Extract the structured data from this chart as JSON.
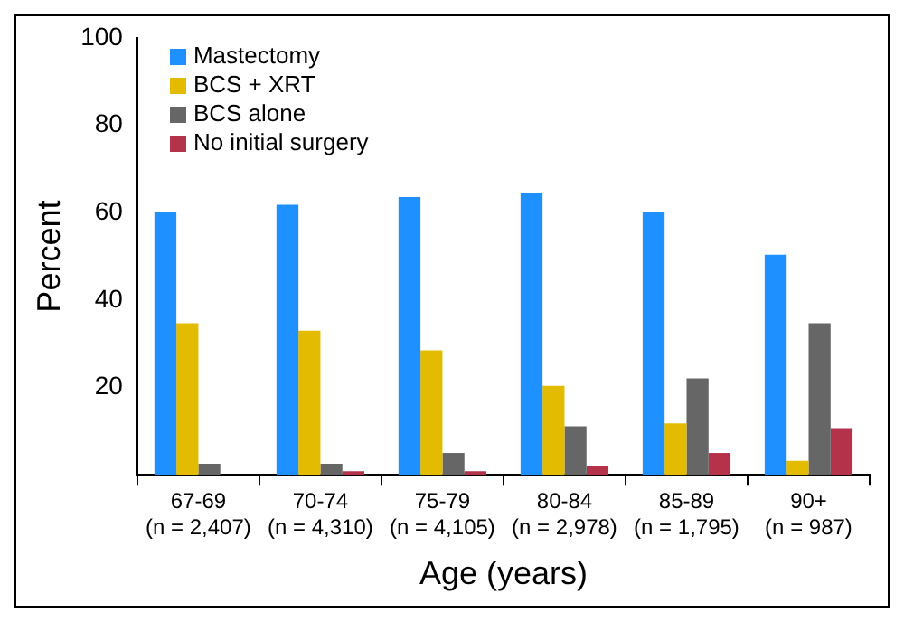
{
  "chart_data": {
    "type": "bar",
    "xlabel": "Age (years)",
    "ylabel": "Percent",
    "categories": [
      "67-69\n(n = 2,407)",
      "70-74\n(n = 4,310)",
      "75-79\n(n = 4,105)",
      "80-84\n(n = 2,978)",
      "85-89\n(n = 1,795)",
      "90+\n(n = 987)"
    ],
    "series": [
      {
        "name": "Mastectomy",
        "color": "#1e90ff",
        "values": [
          60.1,
          61.8,
          63.6,
          64.6,
          60.1,
          50.4
        ]
      },
      {
        "name": "BCS + XRT",
        "color": "#e3bb00",
        "values": [
          34.7,
          33,
          28.5,
          20.4,
          11.8,
          3.2
        ]
      },
      {
        "name": "BCS alone",
        "color": "#666666",
        "values": [
          2.5,
          2.5,
          5,
          11.1,
          22.1,
          34.7
        ]
      },
      {
        "name": "No initial surgery",
        "color": "#b5334a",
        "values": [
          0,
          0.8,
          0.8,
          2.1,
          5,
          10.7
        ]
      }
    ],
    "ylim": [
      0,
      100
    ],
    "yticks": [
      20,
      40,
      60,
      80,
      100
    ],
    "grid": false,
    "legend": "top left"
  }
}
